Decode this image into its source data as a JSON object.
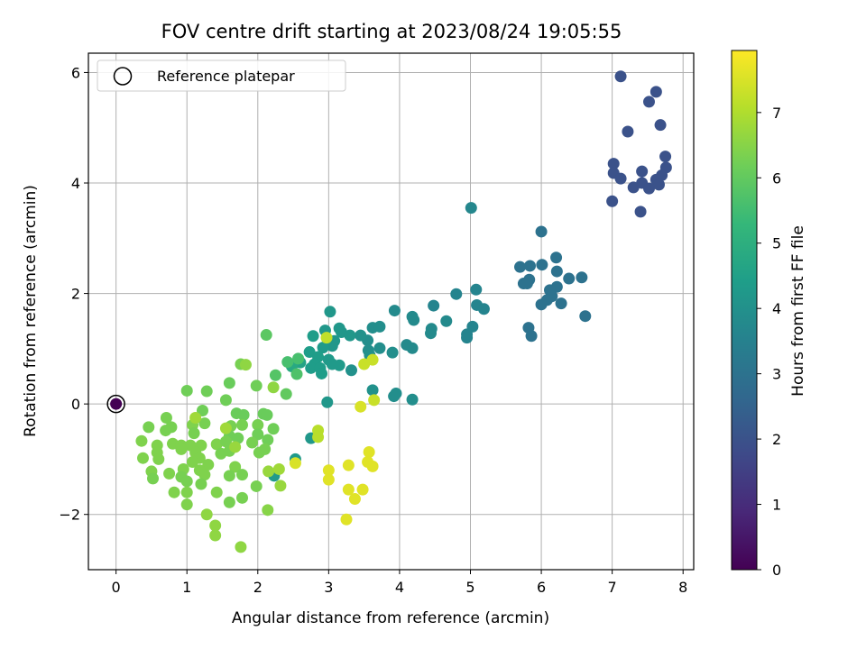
{
  "chart_data": {
    "type": "scatter",
    "title": "FOV centre drift starting at 2023/08/24 19:05:55",
    "xlabel": "Angular distance from reference (arcmin)",
    "ylabel": "Rotation from reference (arcmin)",
    "xlim": [
      -0.39,
      8.15
    ],
    "ylim": [
      -3.0,
      6.35
    ],
    "xticks": [
      0,
      1,
      2,
      3,
      4,
      5,
      6,
      7,
      8
    ],
    "yticks": [
      -2,
      0,
      2,
      4,
      6
    ],
    "ytick_labels": [
      "−2",
      "0",
      "2",
      "4",
      "6"
    ],
    "grid": true,
    "legend": {
      "label": "Reference platepar",
      "placement": "top-left",
      "marker": "hollow-circle"
    },
    "colormap": "viridis",
    "colormap_stops": [
      "#440154",
      "#482878",
      "#3e4a89",
      "#31688e",
      "#26828e",
      "#1f9e89",
      "#35b779",
      "#6ece58",
      "#b5de2b",
      "#fde725"
    ],
    "colorbar": {
      "label": "Hours from first FF file",
      "min": 0,
      "max": 7.95,
      "ticks": [
        0,
        1,
        2,
        3,
        4,
        5,
        6,
        7
      ]
    },
    "reference_point": {
      "x": 0,
      "y": 0,
      "c": 0.0
    },
    "points": [
      {
        "x": 7.12,
        "y": 5.93,
        "c": 2.0
      },
      {
        "x": 7.62,
        "y": 5.65,
        "c": 2.0
      },
      {
        "x": 7.52,
        "y": 5.47,
        "c": 2.0
      },
      {
        "x": 7.68,
        "y": 5.05,
        "c": 2.0
      },
      {
        "x": 7.22,
        "y": 4.93,
        "c": 2.0
      },
      {
        "x": 7.75,
        "y": 4.48,
        "c": 2.0
      },
      {
        "x": 7.02,
        "y": 4.35,
        "c": 2.0
      },
      {
        "x": 7.76,
        "y": 4.28,
        "c": 2.0
      },
      {
        "x": 7.42,
        "y": 4.21,
        "c": 2.0
      },
      {
        "x": 7.02,
        "y": 4.18,
        "c": 2.0
      },
      {
        "x": 7.7,
        "y": 4.14,
        "c": 2.0
      },
      {
        "x": 7.12,
        "y": 4.08,
        "c": 2.0
      },
      {
        "x": 7.62,
        "y": 4.06,
        "c": 2.0
      },
      {
        "x": 7.42,
        "y": 4.0,
        "c": 2.0
      },
      {
        "x": 7.66,
        "y": 3.97,
        "c": 2.0
      },
      {
        "x": 7.3,
        "y": 3.92,
        "c": 2.0
      },
      {
        "x": 7.52,
        "y": 3.9,
        "c": 2.0
      },
      {
        "x": 7.0,
        "y": 3.67,
        "c": 2.0
      },
      {
        "x": 7.4,
        "y": 3.48,
        "c": 2.0
      },
      {
        "x": 5.01,
        "y": 3.55,
        "c": 3.7
      },
      {
        "x": 6.0,
        "y": 3.12,
        "c": 3.0
      },
      {
        "x": 6.21,
        "y": 2.65,
        "c": 3.0
      },
      {
        "x": 6.01,
        "y": 2.52,
        "c": 3.0
      },
      {
        "x": 5.84,
        "y": 2.5,
        "c": 3.0
      },
      {
        "x": 5.7,
        "y": 2.48,
        "c": 3.0
      },
      {
        "x": 6.22,
        "y": 2.4,
        "c": 3.0
      },
      {
        "x": 6.57,
        "y": 2.29,
        "c": 3.0
      },
      {
        "x": 6.39,
        "y": 2.27,
        "c": 3.0
      },
      {
        "x": 5.83,
        "y": 2.25,
        "c": 3.0
      },
      {
        "x": 5.75,
        "y": 2.18,
        "c": 3.0
      },
      {
        "x": 6.22,
        "y": 2.12,
        "c": 3.0
      },
      {
        "x": 5.8,
        "y": 2.18,
        "c": 3.0
      },
      {
        "x": 6.12,
        "y": 2.06,
        "c": 3.0
      },
      {
        "x": 6.15,
        "y": 1.95,
        "c": 3.0
      },
      {
        "x": 6.08,
        "y": 1.88,
        "c": 3.0
      },
      {
        "x": 6.28,
        "y": 1.82,
        "c": 3.0
      },
      {
        "x": 6.0,
        "y": 1.8,
        "c": 3.0
      },
      {
        "x": 6.62,
        "y": 1.59,
        "c": 3.0
      },
      {
        "x": 5.82,
        "y": 1.38,
        "c": 3.0
      },
      {
        "x": 5.86,
        "y": 1.23,
        "c": 3.0
      },
      {
        "x": 5.08,
        "y": 2.07,
        "c": 3.6
      },
      {
        "x": 4.8,
        "y": 1.99,
        "c": 3.6
      },
      {
        "x": 4.48,
        "y": 1.78,
        "c": 3.6
      },
      {
        "x": 5.09,
        "y": 1.79,
        "c": 3.6
      },
      {
        "x": 5.19,
        "y": 1.72,
        "c": 3.6
      },
      {
        "x": 3.93,
        "y": 1.69,
        "c": 3.8
      },
      {
        "x": 4.18,
        "y": 1.58,
        "c": 3.8
      },
      {
        "x": 4.2,
        "y": 1.52,
        "c": 3.8
      },
      {
        "x": 4.66,
        "y": 1.5,
        "c": 3.8
      },
      {
        "x": 5.03,
        "y": 1.4,
        "c": 3.6
      },
      {
        "x": 4.45,
        "y": 1.36,
        "c": 3.8
      },
      {
        "x": 4.44,
        "y": 1.28,
        "c": 3.8
      },
      {
        "x": 4.95,
        "y": 1.26,
        "c": 3.6
      },
      {
        "x": 4.95,
        "y": 1.2,
        "c": 3.6
      },
      {
        "x": 4.1,
        "y": 1.07,
        "c": 3.8
      },
      {
        "x": 4.18,
        "y": 1.01,
        "c": 3.8
      },
      {
        "x": 3.62,
        "y": 1.38,
        "c": 3.9
      },
      {
        "x": 3.72,
        "y": 1.4,
        "c": 3.9
      },
      {
        "x": 3.55,
        "y": 1.15,
        "c": 3.9
      },
      {
        "x": 3.72,
        "y": 1.01,
        "c": 3.9
      },
      {
        "x": 3.56,
        "y": 0.97,
        "c": 3.9
      },
      {
        "x": 3.9,
        "y": 0.93,
        "c": 3.9
      },
      {
        "x": 3.45,
        "y": 1.24,
        "c": 4.0
      },
      {
        "x": 3.58,
        "y": 0.88,
        "c": 4.0
      },
      {
        "x": 3.32,
        "y": 0.61,
        "c": 4.0
      },
      {
        "x": 3.95,
        "y": 0.19,
        "c": 3.9
      },
      {
        "x": 3.92,
        "y": 0.14,
        "c": 3.9
      },
      {
        "x": 4.18,
        "y": 0.08,
        "c": 3.9
      },
      {
        "x": 3.62,
        "y": 0.25,
        "c": 4.0
      },
      {
        "x": 3.02,
        "y": 1.67,
        "c": 4.2
      },
      {
        "x": 2.95,
        "y": 1.33,
        "c": 4.2
      },
      {
        "x": 3.15,
        "y": 1.37,
        "c": 4.2
      },
      {
        "x": 3.18,
        "y": 1.3,
        "c": 4.2
      },
      {
        "x": 3.3,
        "y": 1.24,
        "c": 4.2
      },
      {
        "x": 2.78,
        "y": 1.23,
        "c": 4.4
      },
      {
        "x": 3.08,
        "y": 1.14,
        "c": 4.2
      },
      {
        "x": 3.05,
        "y": 1.05,
        "c": 4.2
      },
      {
        "x": 2.92,
        "y": 1.02,
        "c": 4.3
      },
      {
        "x": 2.73,
        "y": 0.94,
        "c": 4.4
      },
      {
        "x": 2.85,
        "y": 0.85,
        "c": 4.4
      },
      {
        "x": 3.0,
        "y": 0.8,
        "c": 4.3
      },
      {
        "x": 3.05,
        "y": 0.72,
        "c": 4.3
      },
      {
        "x": 3.15,
        "y": 0.7,
        "c": 4.3
      },
      {
        "x": 2.8,
        "y": 0.72,
        "c": 4.4
      },
      {
        "x": 2.75,
        "y": 0.65,
        "c": 4.4
      },
      {
        "x": 2.88,
        "y": 0.65,
        "c": 4.4
      },
      {
        "x": 2.6,
        "y": 0.75,
        "c": 4.6
      },
      {
        "x": 2.48,
        "y": 0.68,
        "c": 4.8
      },
      {
        "x": 2.9,
        "y": 0.55,
        "c": 4.4
      },
      {
        "x": 2.98,
        "y": 0.03,
        "c": 4.2
      },
      {
        "x": 2.75,
        "y": -0.62,
        "c": 4.2
      },
      {
        "x": 2.53,
        "y": -1.0,
        "c": 4.3
      },
      {
        "x": 2.23,
        "y": -1.3,
        "c": 4.3
      },
      {
        "x": 2.42,
        "y": 0.76,
        "c": 5.6
      },
      {
        "x": 2.57,
        "y": 0.82,
        "c": 5.6
      },
      {
        "x": 2.55,
        "y": 0.54,
        "c": 5.7
      },
      {
        "x": 2.25,
        "y": 0.52,
        "c": 5.8
      },
      {
        "x": 2.4,
        "y": 0.18,
        "c": 6.0
      },
      {
        "x": 2.12,
        "y": 1.25,
        "c": 5.9
      },
      {
        "x": 2.22,
        "y": 0.3,
        "c": 6.6
      },
      {
        "x": 1.76,
        "y": 0.72,
        "c": 6.3
      },
      {
        "x": 1.83,
        "y": 0.71,
        "c": 6.6
      },
      {
        "x": 1.98,
        "y": 0.33,
        "c": 6.2
      },
      {
        "x": 1.55,
        "y": 0.07,
        "c": 6.2
      },
      {
        "x": 1.6,
        "y": 0.38,
        "c": 6.1
      },
      {
        "x": 1.28,
        "y": 0.23,
        "c": 6.2
      },
      {
        "x": 1.0,
        "y": 0.24,
        "c": 6.2
      },
      {
        "x": 1.7,
        "y": -0.17,
        "c": 6.1
      },
      {
        "x": 1.8,
        "y": -0.2,
        "c": 6.1
      },
      {
        "x": 2.08,
        "y": -0.18,
        "c": 6.1
      },
      {
        "x": 2.13,
        "y": -0.2,
        "c": 6.1
      },
      {
        "x": 1.22,
        "y": -0.12,
        "c": 6.2
      },
      {
        "x": 1.62,
        "y": -0.4,
        "c": 6.3
      },
      {
        "x": 1.78,
        "y": -0.38,
        "c": 6.3
      },
      {
        "x": 2.0,
        "y": -0.38,
        "c": 6.3
      },
      {
        "x": 2.22,
        "y": -0.45,
        "c": 6.2
      },
      {
        "x": 0.71,
        "y": -0.25,
        "c": 6.3
      },
      {
        "x": 0.46,
        "y": -0.42,
        "c": 6.3
      },
      {
        "x": 0.78,
        "y": -0.42,
        "c": 6.3
      },
      {
        "x": 0.7,
        "y": -0.48,
        "c": 6.3
      },
      {
        "x": 1.08,
        "y": -0.38,
        "c": 6.4
      },
      {
        "x": 1.25,
        "y": -0.35,
        "c": 6.3
      },
      {
        "x": 1.1,
        "y": -0.53,
        "c": 6.3
      },
      {
        "x": 1.6,
        "y": -0.58,
        "c": 6.2
      },
      {
        "x": 1.72,
        "y": -0.62,
        "c": 6.2
      },
      {
        "x": 2.0,
        "y": -0.55,
        "c": 6.2
      },
      {
        "x": 2.14,
        "y": -0.65,
        "c": 6.2
      },
      {
        "x": 0.36,
        "y": -0.67,
        "c": 6.4
      },
      {
        "x": 0.58,
        "y": -0.75,
        "c": 6.4
      },
      {
        "x": 0.8,
        "y": -0.72,
        "c": 6.4
      },
      {
        "x": 0.92,
        "y": -0.75,
        "c": 6.4
      },
      {
        "x": 1.05,
        "y": -0.75,
        "c": 6.4
      },
      {
        "x": 1.2,
        "y": -0.75,
        "c": 6.4
      },
      {
        "x": 1.42,
        "y": -0.73,
        "c": 6.4
      },
      {
        "x": 1.55,
        "y": -0.68,
        "c": 6.3
      },
      {
        "x": 1.92,
        "y": -0.7,
        "c": 6.3
      },
      {
        "x": 0.58,
        "y": -0.88,
        "c": 6.4
      },
      {
        "x": 0.92,
        "y": -0.82,
        "c": 6.4
      },
      {
        "x": 1.12,
        "y": -0.88,
        "c": 6.4
      },
      {
        "x": 1.18,
        "y": -0.98,
        "c": 6.4
      },
      {
        "x": 1.48,
        "y": -0.9,
        "c": 6.3
      },
      {
        "x": 1.6,
        "y": -0.85,
        "c": 6.3
      },
      {
        "x": 2.02,
        "y": -0.88,
        "c": 6.3
      },
      {
        "x": 2.1,
        "y": -0.82,
        "c": 6.3
      },
      {
        "x": 0.38,
        "y": -0.98,
        "c": 6.4
      },
      {
        "x": 0.6,
        "y": -1.0,
        "c": 6.4
      },
      {
        "x": 1.08,
        "y": -1.05,
        "c": 6.4
      },
      {
        "x": 1.3,
        "y": -1.1,
        "c": 6.4
      },
      {
        "x": 1.68,
        "y": -1.14,
        "c": 6.4
      },
      {
        "x": 0.95,
        "y": -1.18,
        "c": 6.4
      },
      {
        "x": 1.18,
        "y": -1.2,
        "c": 6.4
      },
      {
        "x": 0.5,
        "y": -1.22,
        "c": 6.4
      },
      {
        "x": 0.75,
        "y": -1.26,
        "c": 6.4
      },
      {
        "x": 1.25,
        "y": -1.28,
        "c": 6.4
      },
      {
        "x": 1.6,
        "y": -1.3,
        "c": 6.3
      },
      {
        "x": 1.78,
        "y": -1.28,
        "c": 6.3
      },
      {
        "x": 0.52,
        "y": -1.35,
        "c": 6.3
      },
      {
        "x": 0.92,
        "y": -1.32,
        "c": 6.3
      },
      {
        "x": 1.0,
        "y": -1.4,
        "c": 6.3
      },
      {
        "x": 1.2,
        "y": -1.45,
        "c": 6.3
      },
      {
        "x": 1.98,
        "y": -1.49,
        "c": 6.3
      },
      {
        "x": 0.82,
        "y": -1.6,
        "c": 6.4
      },
      {
        "x": 1.0,
        "y": -1.6,
        "c": 6.4
      },
      {
        "x": 1.42,
        "y": -1.6,
        "c": 6.4
      },
      {
        "x": 1.78,
        "y": -1.7,
        "c": 6.3
      },
      {
        "x": 1.6,
        "y": -1.78,
        "c": 6.3
      },
      {
        "x": 1.0,
        "y": -1.82,
        "c": 6.4
      },
      {
        "x": 2.14,
        "y": -1.92,
        "c": 6.5
      },
      {
        "x": 1.28,
        "y": -2.0,
        "c": 6.6
      },
      {
        "x": 1.4,
        "y": -2.2,
        "c": 6.6
      },
      {
        "x": 1.4,
        "y": -2.38,
        "c": 6.6
      },
      {
        "x": 1.76,
        "y": -2.59,
        "c": 6.6
      },
      {
        "x": 2.15,
        "y": -1.22,
        "c": 6.7
      },
      {
        "x": 2.3,
        "y": -1.18,
        "c": 6.8
      },
      {
        "x": 2.32,
        "y": -1.48,
        "c": 6.7
      },
      {
        "x": 1.68,
        "y": -0.78,
        "c": 6.7
      },
      {
        "x": 1.55,
        "y": -0.44,
        "c": 6.8
      },
      {
        "x": 1.12,
        "y": -0.25,
        "c": 6.8
      },
      {
        "x": 2.97,
        "y": 1.2,
        "c": 7.2
      },
      {
        "x": 2.85,
        "y": -0.48,
        "c": 7.1
      },
      {
        "x": 2.85,
        "y": -0.6,
        "c": 7.1
      },
      {
        "x": 3.62,
        "y": 0.8,
        "c": 7.3
      },
      {
        "x": 3.5,
        "y": 0.72,
        "c": 7.3
      },
      {
        "x": 3.64,
        "y": 0.07,
        "c": 7.3
      },
      {
        "x": 3.45,
        "y": -0.05,
        "c": 7.5
      },
      {
        "x": 2.53,
        "y": -1.07,
        "c": 7.5
      },
      {
        "x": 3.57,
        "y": -0.87,
        "c": 7.6
      },
      {
        "x": 3.55,
        "y": -1.05,
        "c": 7.6
      },
      {
        "x": 3.28,
        "y": -1.11,
        "c": 7.6
      },
      {
        "x": 3.0,
        "y": -1.2,
        "c": 7.6
      },
      {
        "x": 3.62,
        "y": -1.13,
        "c": 7.6
      },
      {
        "x": 3.0,
        "y": -1.37,
        "c": 7.6
      },
      {
        "x": 3.28,
        "y": -1.55,
        "c": 7.6
      },
      {
        "x": 3.48,
        "y": -1.55,
        "c": 7.6
      },
      {
        "x": 3.37,
        "y": -1.72,
        "c": 7.6
      },
      {
        "x": 3.25,
        "y": -2.09,
        "c": 7.6
      }
    ]
  }
}
